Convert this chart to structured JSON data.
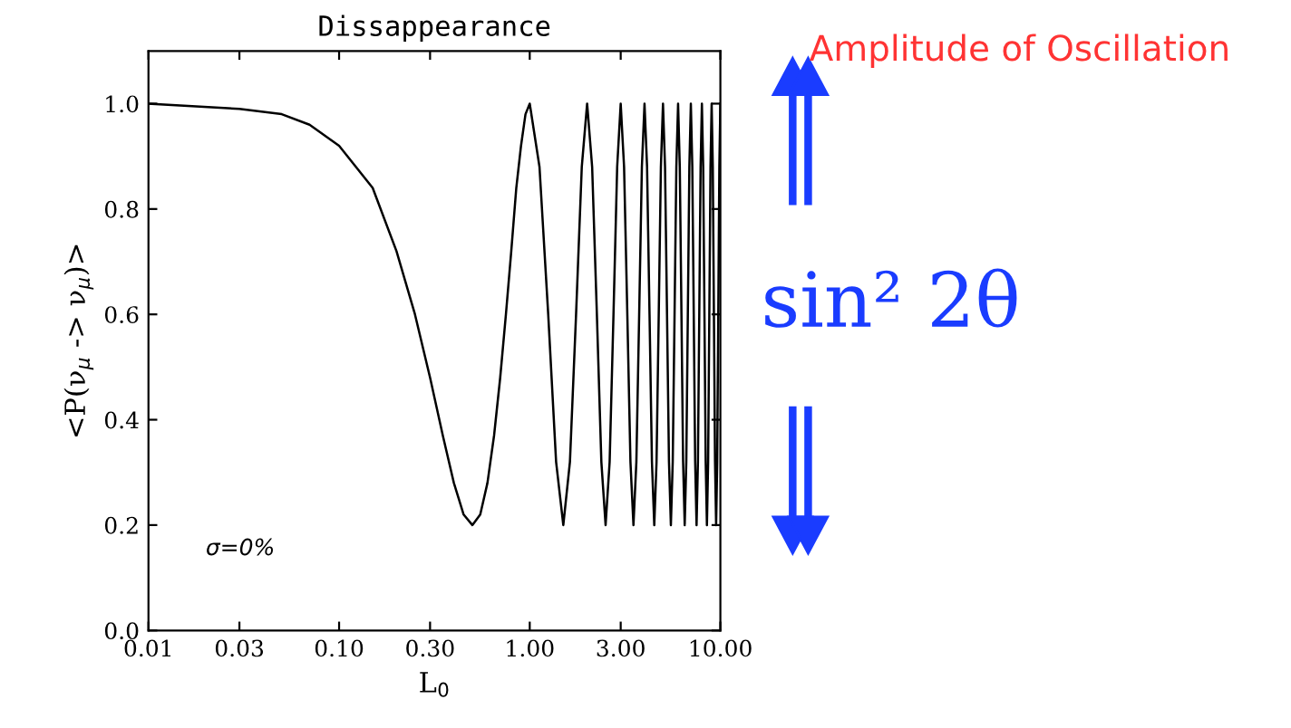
{
  "chart_data": {
    "type": "line",
    "title": "Dissappearance",
    "xlabel": "L$_{0}$",
    "ylabel": "<P(ν$_{μ}$ -> ν$_{μ}$)>",
    "log": "x",
    "grid": false,
    "legend": false,
    "marker": "none",
    "line_style": "solid",
    "xlim": [
      0.01,
      10
    ],
    "xticks": [
      {
        "value": 0.01,
        "label": "0.01"
      },
      {
        "value": 0.03,
        "label": "0.03"
      },
      {
        "value": 0.1,
        "label": "0.10"
      },
      {
        "value": 0.3,
        "label": "0.30"
      },
      {
        "value": 1,
        "label": "1.00"
      },
      {
        "value": 3,
        "label": "3.00"
      },
      {
        "value": 10,
        "label": "10.00"
      }
    ],
    "ylim": [
      0,
      1.1
    ],
    "yticks": [
      {
        "value": 0,
        "label": "0.0"
      },
      {
        "value": 0.2,
        "label": "0.2"
      },
      {
        "value": 0.4,
        "label": "0.4"
      },
      {
        "value": 0.6,
        "label": "0.6"
      },
      {
        "value": 0.8,
        "label": "0.8"
      },
      {
        "value": 1.0,
        "label": "1.0"
      }
    ],
    "annotations": [
      "σ=0%",
      "Amplitude of Oscillation",
      "sin² 2θ"
    ],
    "series": [
      {
        "color": "#000000",
        "x": [
          0.01,
          0.03,
          0.05,
          0.07,
          0.1,
          0.15,
          0.2,
          0.25,
          0.3,
          0.35,
          0.4,
          0.45,
          0.5,
          0.55,
          0.6,
          0.65,
          0.7,
          0.75,
          0.8,
          0.85,
          0.9,
          0.95,
          1.0,
          1.125,
          1.25,
          1.375,
          1.5,
          1.625,
          1.75,
          1.875,
          2.0,
          2.125,
          2.25,
          2.375,
          2.5,
          2.625,
          2.75,
          2.875,
          3.0,
          3.125,
          3.25,
          3.375,
          3.5,
          3.625,
          3.75,
          3.875,
          4.0,
          4.125,
          4.25,
          4.375,
          4.5,
          4.625,
          4.75,
          4.875,
          5.0,
          5.125,
          5.25,
          5.375,
          5.5,
          5.625,
          5.75,
          5.875,
          6.0,
          6.125,
          6.25,
          6.375,
          6.5,
          6.625,
          6.75,
          6.875,
          7.0,
          7.125,
          7.25,
          7.375,
          7.5,
          7.625,
          7.75,
          7.875,
          8.0,
          8.125,
          8.25,
          8.375,
          8.5,
          8.625,
          8.75,
          8.875,
          9.0,
          9.125,
          9.25,
          9.375,
          9.5,
          9.625,
          9.75,
          9.875,
          10.0
        ],
        "values": [
          1.0,
          0.99,
          0.98,
          0.96,
          0.92,
          0.84,
          0.72,
          0.6,
          0.48,
          0.37,
          0.28,
          0.22,
          0.2,
          0.22,
          0.28,
          0.37,
          0.48,
          0.6,
          0.72,
          0.84,
          0.92,
          0.98,
          1.0,
          0.88,
          0.6,
          0.32,
          0.2,
          0.32,
          0.6,
          0.88,
          1.0,
          0.88,
          0.6,
          0.32,
          0.2,
          0.32,
          0.6,
          0.88,
          1.0,
          0.88,
          0.6,
          0.32,
          0.2,
          0.32,
          0.6,
          0.88,
          1.0,
          0.88,
          0.6,
          0.32,
          0.2,
          0.32,
          0.6,
          0.88,
          1.0,
          0.88,
          0.6,
          0.32,
          0.2,
          0.32,
          0.6,
          0.88,
          1.0,
          0.88,
          0.6,
          0.32,
          0.2,
          0.32,
          0.6,
          0.88,
          1.0,
          0.88,
          0.6,
          0.32,
          0.2,
          0.32,
          0.6,
          0.88,
          1.0,
          0.88,
          0.6,
          0.32,
          0.2,
          0.32,
          0.6,
          0.88,
          1.0,
          0.88,
          0.6,
          0.32,
          0.2,
          0.32,
          0.6,
          0.88,
          1.0
        ]
      }
    ]
  }
}
